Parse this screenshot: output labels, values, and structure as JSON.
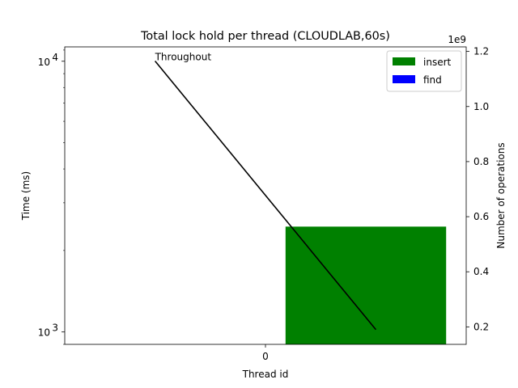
{
  "chart_data": {
    "type": "bar",
    "title": "Total lock hold per thread (CLOUDLAB,60s)",
    "xlabel": "Thread id",
    "ylabel": "Time (ms)",
    "y2label": "Number of operations",
    "y2_offset_label": "1e9",
    "y_scale": "log",
    "x_tick_labels": [
      "0"
    ],
    "y_tick_labels": [
      {
        "value": 1000,
        "base": "10",
        "exp": "3"
      },
      {
        "value": 10000,
        "base": "10",
        "exp": "4"
      }
    ],
    "y2_ticks": [
      0.2,
      0.4,
      0.6,
      0.8,
      1.0,
      1.2
    ],
    "y2_tick_labels": [
      "0.2",
      "0.4",
      "0.6",
      "0.8",
      "1.0",
      "1.2"
    ],
    "series": [
      {
        "name": "insert",
        "color": "#008000",
        "x_range": [
          0.1,
          0.9
        ],
        "value": 2450
      },
      {
        "name": "find",
        "color": "#0000ff",
        "x_range": [
          0.1,
          0.9
        ],
        "value": 0
      }
    ],
    "line": {
      "label": "Throughout",
      "color": "#000000",
      "x": [
        -0.55,
        0.55
      ],
      "y2": [
        1.165,
        0.19
      ]
    },
    "legend_position": "top-right",
    "grid": false
  }
}
